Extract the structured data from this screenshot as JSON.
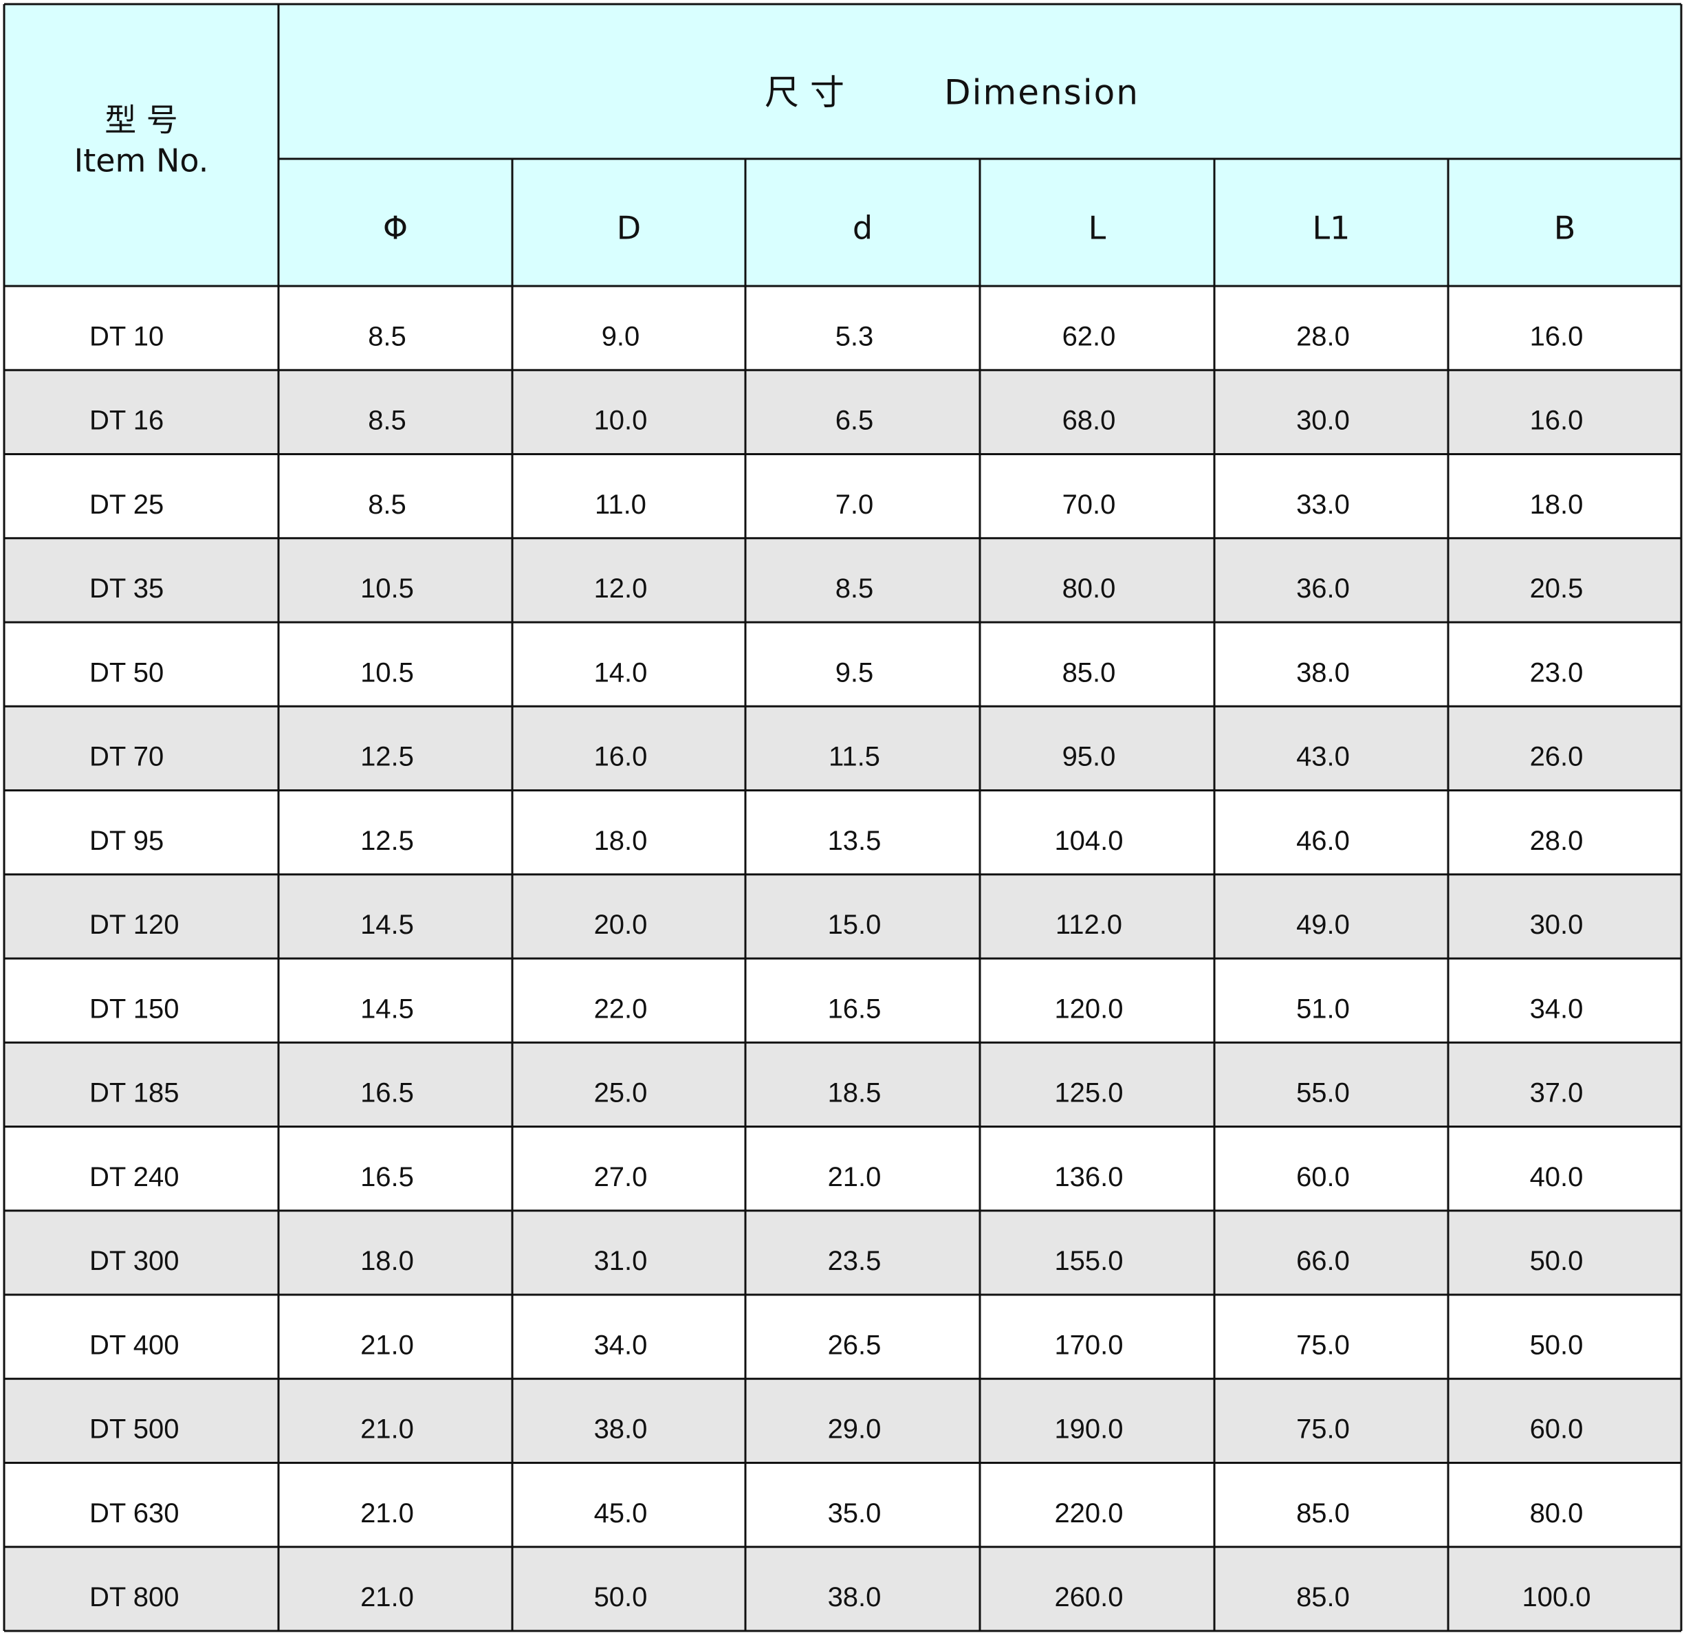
{
  "header": {
    "item_cn": "型 号",
    "item_en": "Item No.",
    "dimension_cn": "尺 寸",
    "dimension_en": "Dimension",
    "columns": [
      "Φ",
      "D",
      "d",
      "L",
      "L1",
      "B"
    ]
  },
  "table": {
    "rows": [
      [
        "DT 10",
        "8.5",
        "9.0",
        "5.3",
        "62.0",
        "28.0",
        "16.0"
      ],
      [
        "DT 16",
        "8.5",
        "10.0",
        "6.5",
        "68.0",
        "30.0",
        "16.0"
      ],
      [
        "DT 25",
        "8.5",
        "11.0",
        "7.0",
        "70.0",
        "33.0",
        "18.0"
      ],
      [
        "DT 35",
        "10.5",
        "12.0",
        "8.5",
        "80.0",
        "36.0",
        "20.5"
      ],
      [
        "DT 50",
        "10.5",
        "14.0",
        "9.5",
        "85.0",
        "38.0",
        "23.0"
      ],
      [
        "DT 70",
        "12.5",
        "16.0",
        "11.5",
        "95.0",
        "43.0",
        "26.0"
      ],
      [
        "DT 95",
        "12.5",
        "18.0",
        "13.5",
        "104.0",
        "46.0",
        "28.0"
      ],
      [
        "DT 120",
        "14.5",
        "20.0",
        "15.0",
        "112.0",
        "49.0",
        "30.0"
      ],
      [
        "DT 150",
        "14.5",
        "22.0",
        "16.5",
        "120.0",
        "51.0",
        "34.0"
      ],
      [
        "DT 185",
        "16.5",
        "25.0",
        "18.5",
        "125.0",
        "55.0",
        "37.0"
      ],
      [
        "DT 240",
        "16.5",
        "27.0",
        "21.0",
        "136.0",
        "60.0",
        "40.0"
      ],
      [
        "DT 300",
        "18.0",
        "31.0",
        "23.5",
        "155.0",
        "66.0",
        "50.0"
      ],
      [
        "DT 400",
        "21.0",
        "34.0",
        "26.5",
        "170.0",
        "75.0",
        "50.0"
      ],
      [
        "DT 500",
        "21.0",
        "38.0",
        "29.0",
        "190.0",
        "75.0",
        "60.0"
      ],
      [
        "DT 630",
        "21.0",
        "45.0",
        "35.0",
        "220.0",
        "85.0",
        "80.0"
      ],
      [
        "DT 800",
        "21.0",
        "50.0",
        "38.0",
        "260.0",
        "85.0",
        "100.0"
      ]
    ]
  }
}
